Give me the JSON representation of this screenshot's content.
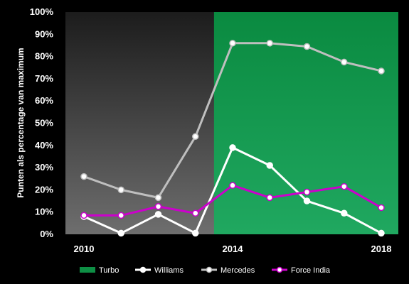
{
  "chart_data": {
    "type": "line",
    "ylabel": "Punten als percentage van maximum",
    "xlim": [
      2010,
      2018
    ],
    "ylim": [
      0,
      100
    ],
    "x_ticks": [
      "2010",
      "2014",
      "2018"
    ],
    "y_ticks": [
      "0%",
      "10%",
      "20%",
      "30%",
      "40%",
      "50%",
      "60%",
      "70%",
      "80%",
      "90%",
      "100%"
    ],
    "x": [
      2010,
      2011,
      2012,
      2013,
      2014,
      2015,
      2016,
      2017,
      2018
    ],
    "shaded_region": {
      "name": "Turbo",
      "from": 2013.5,
      "to": 2018.5,
      "color": "#0e8f45"
    },
    "series": [
      {
        "name": "Williams",
        "color": "#ffffff",
        "values": [
          8,
          0.5,
          9,
          0.5,
          39,
          31,
          15,
          9.5,
          0.5
        ]
      },
      {
        "name": "Mercedes",
        "color": "#bfbfbf",
        "values": [
          26,
          20,
          16.5,
          44,
          86,
          86,
          84.5,
          77.5,
          73.5
        ]
      },
      {
        "name": "Force India",
        "color": "#cc00cc",
        "values": [
          8.5,
          8.5,
          12.5,
          9.5,
          22,
          16.5,
          19,
          21.5,
          12
        ]
      }
    ],
    "legend": {
      "position": "bottom",
      "entries": [
        "Turbo",
        "Williams",
        "Mercedes",
        "Force India"
      ]
    },
    "grid": false,
    "colors": {
      "background": "#000000",
      "plot_background_top": "#1c1c1c",
      "plot_background_bottom": "#6e6e6e"
    }
  }
}
